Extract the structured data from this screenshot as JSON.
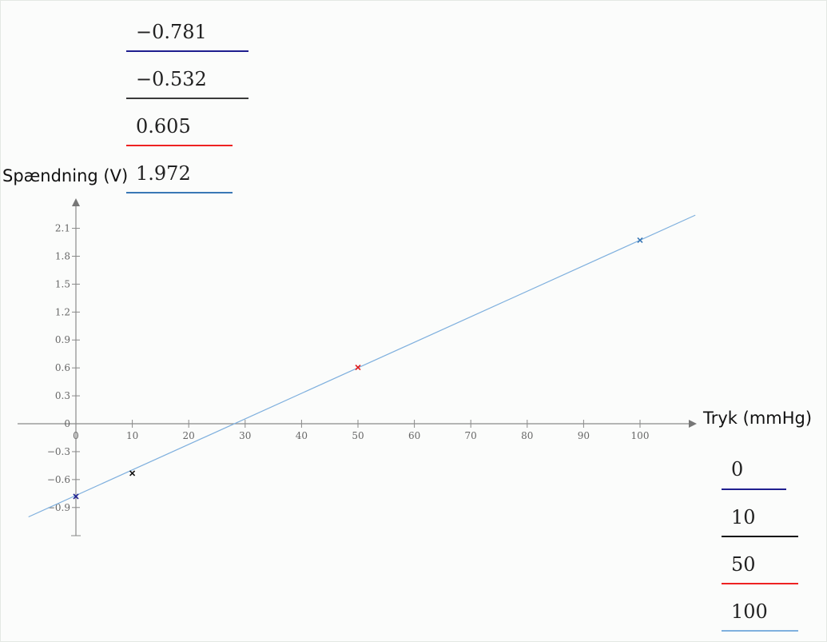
{
  "chart_data": {
    "type": "scatter",
    "title": "",
    "xlabel": "Tryk (mmHg)",
    "ylabel": "Spændning (V)",
    "xlim": [
      -8,
      110
    ],
    "ylim": [
      -1.2,
      2.4
    ],
    "x_ticks": [
      0,
      10,
      20,
      30,
      40,
      50,
      60,
      70,
      80,
      90,
      100
    ],
    "y_ticks": [
      2.1,
      1.8,
      1.5,
      1.2,
      0.9,
      0.6,
      0.3,
      0,
      -0.3,
      -0.6,
      -0.9
    ],
    "grid": false,
    "points": [
      {
        "x": 0,
        "y": -0.781,
        "color": "#1f1f8f"
      },
      {
        "x": 10,
        "y": -0.532,
        "color": "#111111"
      },
      {
        "x": 50,
        "y": 0.605,
        "color": "#e21c1c"
      },
      {
        "x": 100,
        "y": 1.972,
        "color": "#3a78b5"
      }
    ],
    "fit_line": {
      "slope": 0.02743,
      "intercept": -0.7705,
      "x_range": [
        -8.4,
        109.8
      ],
      "color": "#7fb0de"
    }
  },
  "y_values_legend": [
    {
      "value": "−0.781",
      "color": "#1f1f8f"
    },
    {
      "value": "−0.532",
      "color": "#3a3a3a"
    },
    {
      "value": "0.605",
      "color": "#ee2222"
    },
    {
      "value": "1.972",
      "color": "#3a78b5"
    }
  ],
  "x_values_legend": [
    {
      "value": "0",
      "color": "#1f1f8f"
    },
    {
      "value": "10",
      "color": "#111111"
    },
    {
      "value": "50",
      "color": "#ee2222"
    },
    {
      "value": "100",
      "color": "#7fb0de"
    }
  ]
}
